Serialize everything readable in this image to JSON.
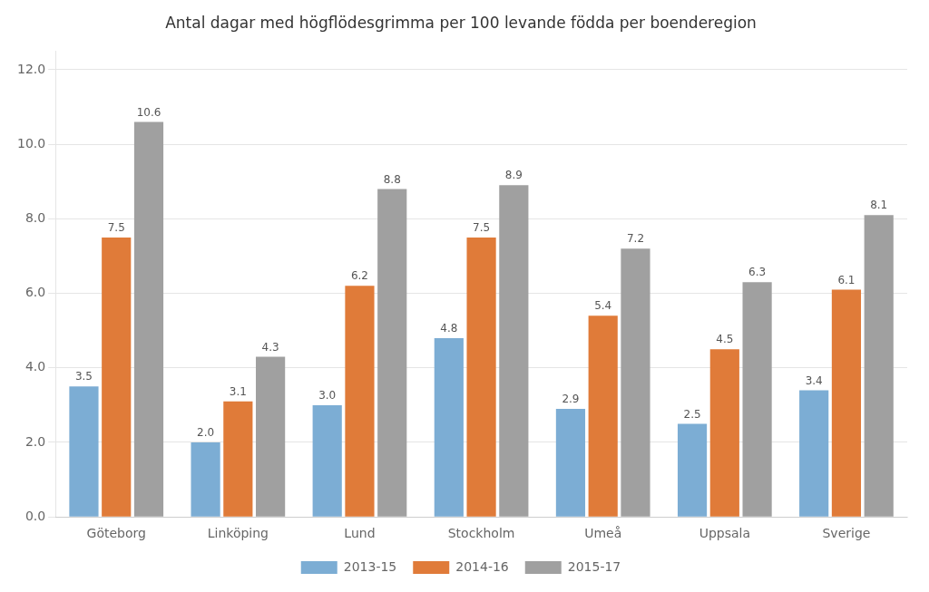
{
  "chart_data": {
    "type": "bar",
    "title": "Antal dagar med högflödesgrimma per 100 levande födda per boenderegion",
    "categories": [
      "Göteborg",
      "Linköping",
      "Lund",
      "Stockholm",
      "Umeå",
      "Uppsala",
      "Sverige"
    ],
    "series": [
      {
        "name": "2013-15",
        "color": "#7cadd4",
        "values": [
          3.5,
          2.0,
          3.0,
          4.8,
          2.9,
          2.5,
          3.4
        ],
        "value_labels": [
          "3.5",
          "2.0",
          "3.0",
          "4.8",
          "2.9",
          "2.5",
          "3.4"
        ]
      },
      {
        "name": "2014-16",
        "color": "#e07b39",
        "values": [
          7.5,
          3.1,
          6.2,
          7.5,
          5.4,
          4.5,
          6.1
        ],
        "value_labels": [
          "7.5",
          "3.1",
          "6.2",
          "7.5",
          "5.4",
          "4.5",
          "6.1"
        ]
      },
      {
        "name": "2015-17",
        "color": "#a0a0a0",
        "values": [
          10.6,
          4.3,
          8.8,
          8.9,
          7.2,
          6.3,
          8.1
        ],
        "value_labels": [
          "10.6",
          "4.3",
          "8.8",
          "8.9",
          "7.2",
          "6.3",
          "8.1"
        ]
      }
    ],
    "ylim": [
      0,
      12.5
    ],
    "yticks": [
      {
        "value": 0.0,
        "label": "0.0"
      },
      {
        "value": 2.0,
        "label": "2.0"
      },
      {
        "value": 4.0,
        "label": "4.0"
      },
      {
        "value": 6.0,
        "label": "6.0"
      },
      {
        "value": 8.0,
        "label": "8.0"
      },
      {
        "value": 10.0,
        "label": "10.0"
      },
      {
        "value": 12.0,
        "label": "12.0"
      }
    ],
    "grid": true,
    "legend": "bottom",
    "data_labels": true
  }
}
